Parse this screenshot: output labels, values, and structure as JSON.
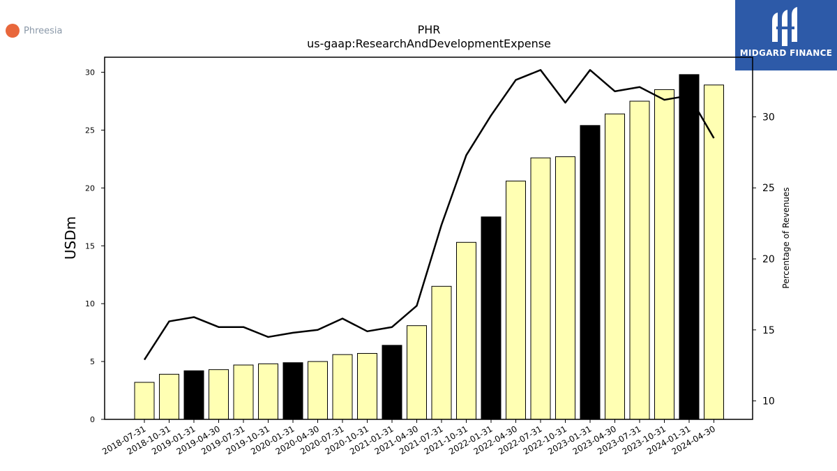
{
  "brand": {
    "left_name": "Phreesia",
    "right_name": "MIDGARD FINANCE"
  },
  "colors": {
    "bar_default": "#ffffb3",
    "bar_highlight": "#000000",
    "line": "#000000",
    "brand_left_dot": "#e8673c",
    "brand_right_bg": "#2d5aa8"
  },
  "chart_data": {
    "type": "bar",
    "title": "PHR",
    "subtitle": "us-gaap:ResearchAndDevelopmentExpense",
    "ylabel": "USDm",
    "y2label": "Percentage of Revenues",
    "ylim": [
      0,
      31.3
    ],
    "y2lim": [
      8.7,
      34.2
    ],
    "yticks": [
      0,
      5,
      10,
      15,
      20,
      25,
      30
    ],
    "y2ticks": [
      10,
      15,
      20,
      25,
      30
    ],
    "categories": [
      "2018-07-31",
      "2018-10-31",
      "2019-01-31",
      "2019-04-30",
      "2019-07-31",
      "2019-10-31",
      "2020-01-31",
      "2020-04-30",
      "2020-07-31",
      "2020-10-31",
      "2021-01-31",
      "2021-04-30",
      "2021-07-31",
      "2021-10-31",
      "2022-01-31",
      "2022-04-30",
      "2022-07-31",
      "2022-10-31",
      "2023-01-31",
      "2023-04-30",
      "2023-07-31",
      "2023-10-31",
      "2024-01-31",
      "2024-04-30"
    ],
    "series": [
      {
        "type": "bar",
        "axis": "left",
        "values": [
          3.2,
          3.9,
          4.2,
          4.3,
          4.7,
          4.8,
          4.9,
          5.0,
          5.6,
          5.7,
          6.4,
          8.1,
          11.5,
          15.3,
          17.5,
          20.6,
          22.6,
          22.7,
          25.4,
          26.4,
          27.5,
          28.5,
          29.8,
          28.9
        ],
        "highlight": [
          false,
          false,
          true,
          false,
          false,
          false,
          true,
          false,
          false,
          false,
          true,
          false,
          false,
          false,
          true,
          false,
          false,
          false,
          true,
          false,
          false,
          false,
          true,
          false
        ]
      },
      {
        "type": "line",
        "axis": "right",
        "values": [
          12.9,
          15.6,
          15.9,
          15.2,
          15.2,
          14.5,
          14.8,
          15.0,
          15.8,
          14.9,
          15.2,
          16.7,
          22.4,
          27.3,
          30.1,
          32.6,
          33.3,
          31.0,
          33.3,
          31.8,
          32.1,
          31.2,
          31.5,
          28.5
        ]
      }
    ]
  }
}
